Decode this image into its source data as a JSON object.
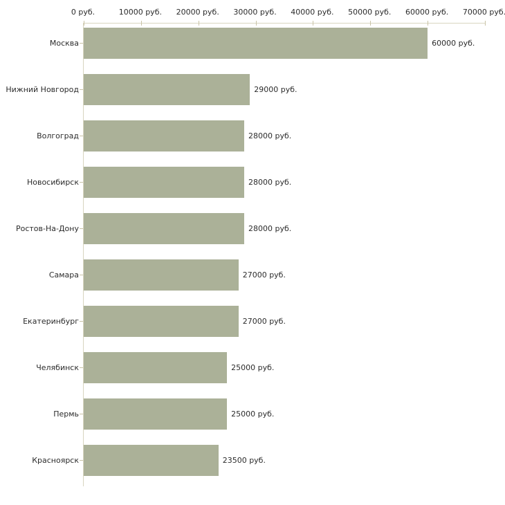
{
  "chart_data": {
    "type": "bar",
    "orientation": "horizontal",
    "title": "",
    "categories": [
      "Москва",
      "Нижний Новгород",
      "Волгоград",
      "Новосибирск",
      "Ростов-На-Дону",
      "Самара",
      "Екатеринбург",
      "Челябинск",
      "Пермь",
      "Красноярск"
    ],
    "values": [
      60000,
      29000,
      28000,
      28000,
      28000,
      27000,
      27000,
      25000,
      25000,
      23500
    ],
    "value_labels": [
      "60000 руб.",
      "29000 руб.",
      "28000 руб.",
      "28000 руб.",
      "28000 руб.",
      "27000 руб.",
      "27000 руб.",
      "25000 руб.",
      "25000 руб.",
      "23500 руб."
    ],
    "x_ticks": [
      0,
      10000,
      20000,
      30000,
      40000,
      50000,
      60000,
      70000
    ],
    "x_tick_labels": [
      "0 руб.",
      "10000 руб.",
      "20000 руб.",
      "30000 руб.",
      "40000 руб.",
      "50000 руб.",
      "60000 руб.",
      "70000 руб."
    ],
    "xlim": [
      0,
      70000
    ],
    "unit": "руб.",
    "xlabel": "",
    "ylabel": "",
    "grid": false,
    "legend": false,
    "axis_position": "top",
    "colors": {
      "bar": "#abb198",
      "axis": "#d8d5c0",
      "tick": "#c9c3a6",
      "text": "#2b2b2b",
      "background": "#ffffff"
    }
  }
}
